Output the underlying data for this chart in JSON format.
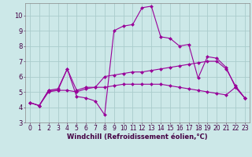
{
  "xlabel": "Windchill (Refroidissement éolien,°C)",
  "bg_color": "#cce8e8",
  "grid_color": "#aacccc",
  "line_color": "#990099",
  "xlim": [
    -0.5,
    23.5
  ],
  "ylim": [
    3,
    10.8
  ],
  "yticks": [
    3,
    4,
    5,
    6,
    7,
    8,
    9,
    10
  ],
  "xticks": [
    0,
    1,
    2,
    3,
    4,
    5,
    6,
    7,
    8,
    9,
    10,
    11,
    12,
    13,
    14,
    15,
    16,
    17,
    18,
    19,
    20,
    21,
    22,
    23
  ],
  "series": [
    [
      4.3,
      4.1,
      5.1,
      5.1,
      6.5,
      4.7,
      4.6,
      4.4,
      3.5,
      9.0,
      9.3,
      9.4,
      10.5,
      10.6,
      8.6,
      8.5,
      8.0,
      8.1,
      5.9,
      7.3,
      7.2,
      6.6,
      5.3,
      4.6
    ],
    [
      4.3,
      4.1,
      5.1,
      5.2,
      6.5,
      5.1,
      5.3,
      5.3,
      6.0,
      6.1,
      6.2,
      6.3,
      6.3,
      6.4,
      6.5,
      6.6,
      6.7,
      6.8,
      6.9,
      7.0,
      7.0,
      6.5,
      5.4,
      4.6
    ],
    [
      4.3,
      4.1,
      5.0,
      5.1,
      5.1,
      5.0,
      5.2,
      5.3,
      5.3,
      5.4,
      5.5,
      5.5,
      5.5,
      5.5,
      5.5,
      5.4,
      5.3,
      5.2,
      5.1,
      5.0,
      4.9,
      4.8,
      5.3,
      4.6
    ]
  ],
  "tick_fontsize": 5.5,
  "xlabel_fontsize": 6.0,
  "xlabel_color": "#440044",
  "marker": "D",
  "markersize": 2.0,
  "linewidth": 0.8
}
